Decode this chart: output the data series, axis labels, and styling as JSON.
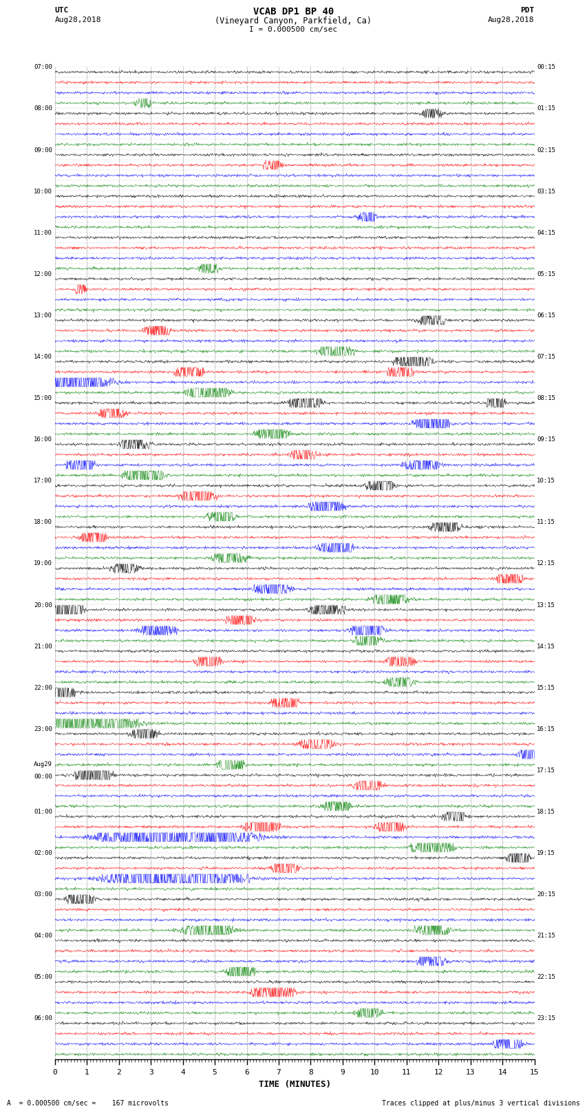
{
  "title_line1": "VCAB DP1 BP 40",
  "title_line2": "(Vineyard Canyon, Parkfield, Ca)",
  "scale_label": "I = 0.000500 cm/sec",
  "utc_label": "UTC",
  "utc_date": "Aug28,2018",
  "pdt_label": "PDT",
  "pdt_date": "Aug28,2018",
  "xlabel": "TIME (MINUTES)",
  "bottom_left": "A  = 0.000500 cm/sec =    167 microvolts",
  "bottom_right": "Traces clipped at plus/minus 3 vertical divisions",
  "left_times": [
    "07:00",
    "08:00",
    "09:00",
    "10:00",
    "11:00",
    "12:00",
    "13:00",
    "14:00",
    "15:00",
    "16:00",
    "17:00",
    "18:00",
    "19:00",
    "20:00",
    "21:00",
    "22:00",
    "23:00",
    "Aug29\n00:00",
    "01:00",
    "02:00",
    "03:00",
    "04:00",
    "05:00",
    "06:00"
  ],
  "right_times": [
    "00:15",
    "01:15",
    "02:15",
    "03:15",
    "04:15",
    "05:15",
    "06:15",
    "07:15",
    "08:15",
    "09:15",
    "10:15",
    "11:15",
    "12:15",
    "13:15",
    "14:15",
    "15:15",
    "16:15",
    "17:15",
    "18:15",
    "19:15",
    "20:15",
    "21:15",
    "22:15",
    "23:15"
  ],
  "channel_colors": [
    "black",
    "red",
    "blue",
    "green"
  ],
  "n_rows": 24,
  "n_channels": 4,
  "x_min": 0,
  "x_max": 15,
  "x_ticks": [
    0,
    1,
    2,
    3,
    4,
    5,
    6,
    7,
    8,
    9,
    10,
    11,
    12,
    13,
    14,
    15
  ],
  "background_color": "white",
  "random_seed": 42,
  "noise_base": 0.06,
  "clip_level": 0.42,
  "events": [
    [
      5,
      1,
      0.8,
      2.5,
      0.15
    ],
    [
      7,
      0,
      11.2,
      3.5,
      0.5
    ],
    [
      7,
      1,
      4.2,
      2.0,
      0.4
    ],
    [
      7,
      1,
      10.8,
      2.0,
      0.4
    ],
    [
      7,
      2,
      0.3,
      4.5,
      1.2
    ],
    [
      7,
      3,
      4.8,
      2.5,
      0.6
    ],
    [
      8,
      0,
      7.8,
      2.0,
      0.5
    ],
    [
      8,
      0,
      13.8,
      1.5,
      0.3
    ],
    [
      8,
      1,
      1.8,
      1.5,
      0.4
    ],
    [
      8,
      2,
      11.8,
      2.5,
      0.5
    ],
    [
      8,
      3,
      6.8,
      1.8,
      0.5
    ],
    [
      9,
      0,
      2.5,
      2.5,
      0.4
    ],
    [
      9,
      1,
      7.8,
      1.8,
      0.4
    ],
    [
      9,
      2,
      0.8,
      2.0,
      0.4
    ],
    [
      9,
      2,
      11.5,
      2.5,
      0.5
    ],
    [
      9,
      3,
      2.8,
      2.5,
      0.6
    ],
    [
      10,
      0,
      10.2,
      2.0,
      0.4
    ],
    [
      10,
      1,
      4.5,
      2.0,
      0.5
    ],
    [
      10,
      2,
      8.5,
      2.5,
      0.5
    ],
    [
      10,
      3,
      5.2,
      1.8,
      0.4
    ],
    [
      11,
      0,
      12.2,
      2.5,
      0.4
    ],
    [
      11,
      1,
      1.2,
      1.8,
      0.4
    ],
    [
      11,
      2,
      8.8,
      2.5,
      0.5
    ],
    [
      11,
      3,
      5.5,
      2.0,
      0.5
    ],
    [
      12,
      0,
      2.2,
      2.0,
      0.4
    ],
    [
      12,
      1,
      14.2,
      1.8,
      0.4
    ],
    [
      12,
      2,
      6.8,
      2.8,
      0.5
    ],
    [
      12,
      3,
      10.5,
      2.2,
      0.5
    ],
    [
      13,
      0,
      0.3,
      3.5,
      0.5
    ],
    [
      13,
      0,
      8.5,
      2.5,
      0.5
    ],
    [
      13,
      1,
      5.8,
      1.8,
      0.4
    ],
    [
      13,
      2,
      3.2,
      2.5,
      0.5
    ],
    [
      13,
      2,
      9.8,
      2.5,
      0.5
    ],
    [
      13,
      3,
      9.8,
      2.0,
      0.4
    ],
    [
      14,
      1,
      4.8,
      2.0,
      0.4
    ],
    [
      14,
      1,
      10.8,
      2.0,
      0.4
    ],
    [
      14,
      3,
      10.8,
      1.8,
      0.4
    ],
    [
      15,
      0,
      0.2,
      3.0,
      0.4
    ],
    [
      15,
      1,
      7.2,
      1.8,
      0.4
    ],
    [
      15,
      3,
      0.8,
      5.0,
      1.5
    ],
    [
      16,
      0,
      2.8,
      1.8,
      0.4
    ],
    [
      16,
      1,
      8.2,
      2.5,
      0.5
    ],
    [
      16,
      2,
      14.8,
      2.0,
      0.3
    ],
    [
      16,
      3,
      5.5,
      2.0,
      0.4
    ],
    [
      17,
      0,
      1.2,
      3.0,
      0.5
    ],
    [
      17,
      1,
      9.8,
      2.0,
      0.4
    ],
    [
      17,
      3,
      8.8,
      1.8,
      0.4
    ],
    [
      18,
      0,
      12.5,
      2.5,
      0.3
    ],
    [
      18,
      1,
      6.5,
      2.5,
      0.5
    ],
    [
      18,
      1,
      10.5,
      2.5,
      0.4
    ],
    [
      18,
      2,
      3.8,
      5.5,
      2.0
    ],
    [
      18,
      3,
      11.8,
      2.5,
      0.6
    ],
    [
      19,
      2,
      3.8,
      5.0,
      1.8
    ],
    [
      19,
      0,
      14.5,
      3.5,
      0.3
    ],
    [
      19,
      1,
      7.2,
      2.0,
      0.4
    ],
    [
      20,
      0,
      0.8,
      2.0,
      0.4
    ],
    [
      20,
      3,
      4.8,
      3.0,
      0.7
    ],
    [
      20,
      3,
      11.8,
      2.0,
      0.5
    ],
    [
      21,
      2,
      11.8,
      1.8,
      0.4
    ],
    [
      21,
      3,
      5.8,
      1.8,
      0.4
    ],
    [
      22,
      1,
      6.8,
      2.5,
      0.6
    ],
    [
      22,
      3,
      9.8,
      1.5,
      0.4
    ],
    [
      23,
      2,
      14.2,
      2.5,
      0.4
    ],
    [
      6,
      3,
      8.8,
      2.0,
      0.5
    ],
    [
      6,
      0,
      11.8,
      1.8,
      0.4
    ],
    [
      6,
      1,
      3.2,
      1.5,
      0.4
    ],
    [
      4,
      3,
      4.8,
      1.2,
      0.3
    ],
    [
      3,
      2,
      9.8,
      1.2,
      0.3
    ],
    [
      2,
      1,
      6.8,
      1.0,
      0.3
    ],
    [
      1,
      0,
      11.8,
      1.0,
      0.3
    ],
    [
      0,
      3,
      2.8,
      0.8,
      0.3
    ]
  ]
}
